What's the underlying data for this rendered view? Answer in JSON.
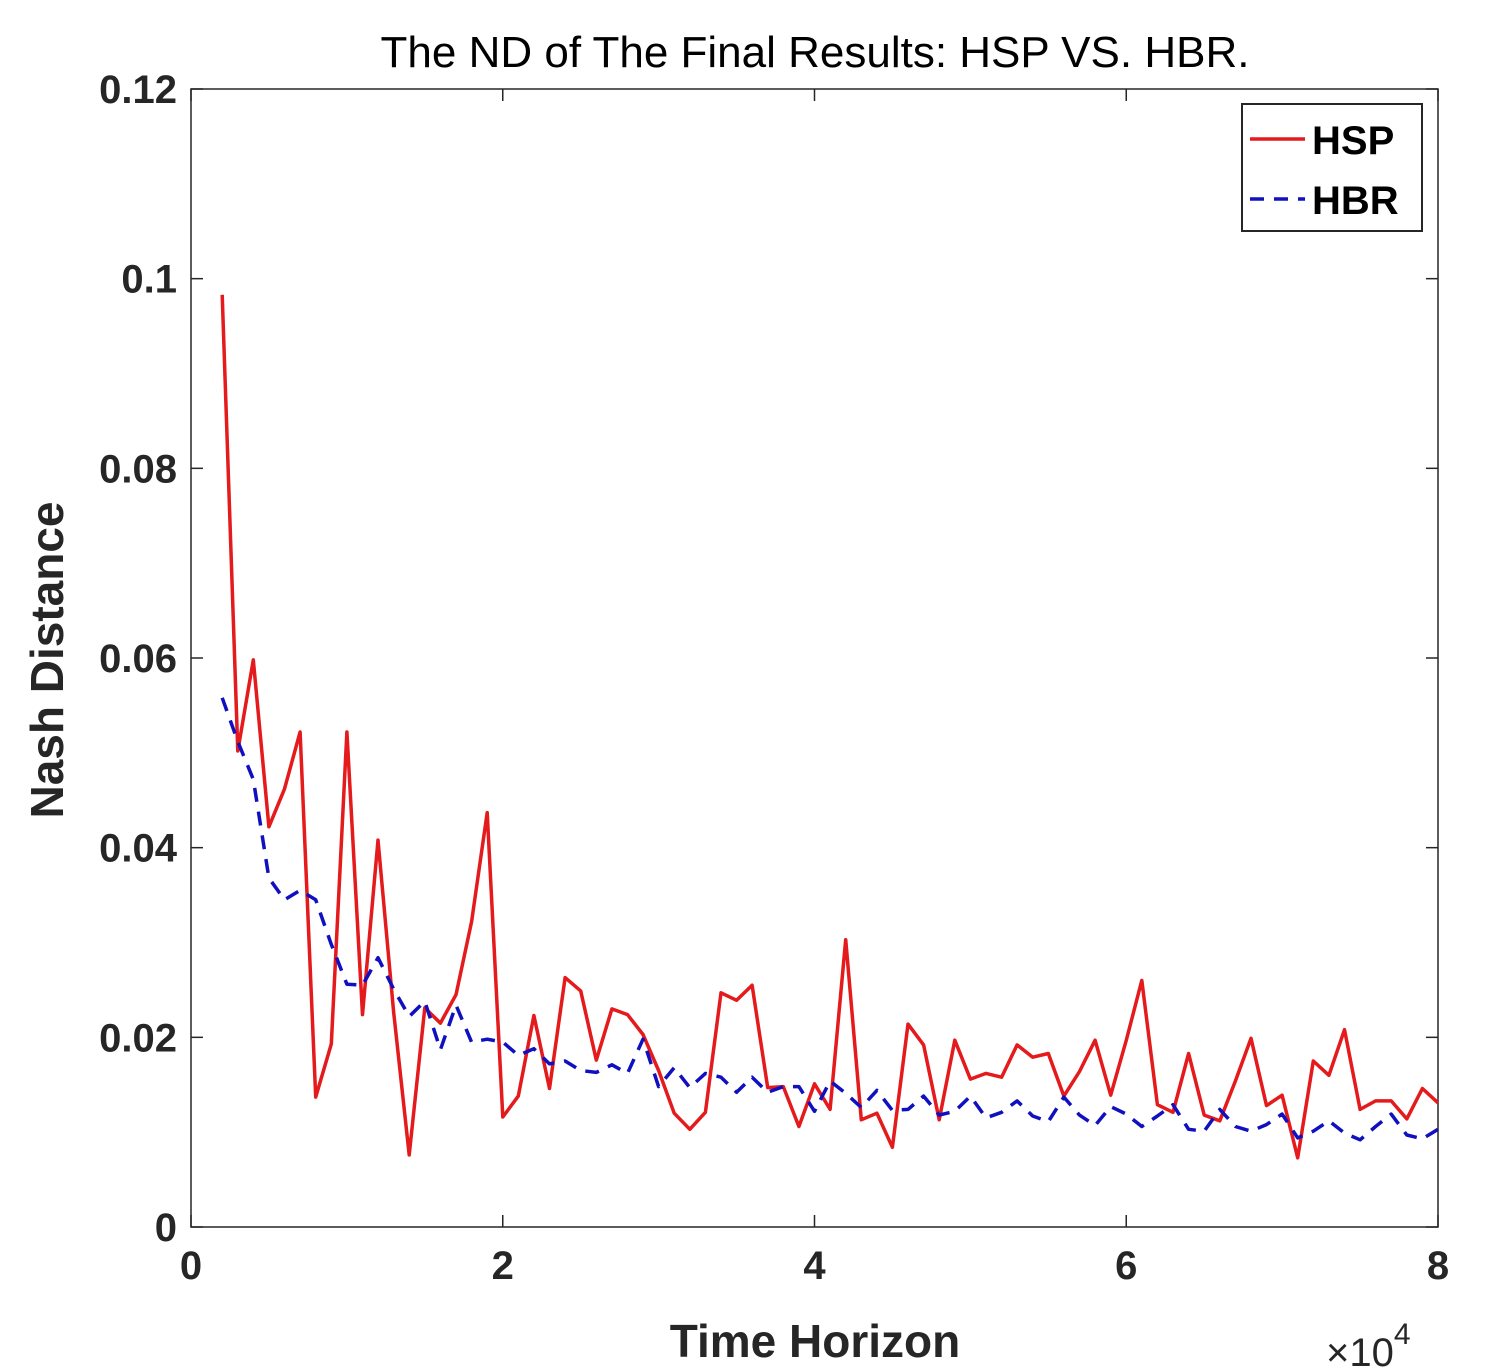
{
  "chart_data": {
    "type": "line",
    "title": "The ND of The Final Results: HSP VS. HBR.",
    "xlabel": "Time Horizon",
    "ylabel": "Nash Distance",
    "x_multiplier": "×10",
    "x_multiplier_exp": "4",
    "xlim": [
      0,
      8
    ],
    "ylim": [
      0,
      0.12
    ],
    "xticks": [
      "0",
      "2",
      "4",
      "6",
      "8"
    ],
    "yticks": [
      "0",
      "0.02",
      "0.04",
      "0.06",
      "0.08",
      "0.1",
      "0.12"
    ],
    "xtick_values": [
      0,
      2,
      4,
      6,
      8
    ],
    "ytick_values": [
      0,
      0.02,
      0.04,
      0.06,
      0.08,
      0.1,
      0.12
    ],
    "grid": false,
    "legend_position": "top-right",
    "series": [
      {
        "name": "HSP",
        "color": "#e41a1c",
        "style": "solid",
        "x": [
          0.2,
          0.3,
          0.4,
          0.5,
          0.6,
          0.7,
          0.8,
          0.9,
          1.0,
          1.1,
          1.2,
          1.3,
          1.4,
          1.5,
          1.6,
          1.7,
          1.8,
          1.9,
          2.0,
          2.1,
          2.2,
          2.3,
          2.4,
          2.5,
          2.6,
          2.7,
          2.8,
          2.9,
          3.0,
          3.1,
          3.2,
          3.3,
          3.4,
          3.5,
          3.6,
          3.7,
          3.8,
          3.9,
          4.0,
          4.1,
          4.2,
          4.3,
          4.4,
          4.5,
          4.6,
          4.7,
          4.8,
          4.9,
          5.0,
          5.1,
          5.2,
          5.3,
          5.4,
          5.5,
          5.6,
          5.7,
          5.8,
          5.9,
          6.0,
          6.1,
          6.2,
          6.3,
          6.4,
          6.5,
          6.6,
          6.7,
          6.8,
          6.9,
          7.0,
          7.1,
          7.2,
          7.3,
          7.4,
          7.5,
          7.6,
          7.7,
          7.8,
          7.9,
          8.0
        ],
        "values": [
          0.0983,
          0.0502,
          0.0598,
          0.0422,
          0.0462,
          0.0522,
          0.0137,
          0.0193,
          0.0522,
          0.0224,
          0.0408,
          0.0227,
          0.0076,
          0.0231,
          0.0215,
          0.0245,
          0.0322,
          0.0437,
          0.0116,
          0.0138,
          0.0223,
          0.0146,
          0.0263,
          0.0249,
          0.0176,
          0.023,
          0.0224,
          0.0203,
          0.0165,
          0.012,
          0.0103,
          0.0121,
          0.0247,
          0.0239,
          0.0255,
          0.0147,
          0.0148,
          0.0106,
          0.0151,
          0.0124,
          0.0303,
          0.0113,
          0.012,
          0.0084,
          0.0214,
          0.0192,
          0.0113,
          0.0197,
          0.0156,
          0.0162,
          0.0158,
          0.0192,
          0.0179,
          0.0183,
          0.0138,
          0.0164,
          0.0197,
          0.0139,
          0.0197,
          0.026,
          0.0129,
          0.0121,
          0.0183,
          0.0118,
          0.0112,
          0.0154,
          0.0199,
          0.0128,
          0.0139,
          0.0073,
          0.0175,
          0.016,
          0.0208,
          0.0124,
          0.0133,
          0.0133,
          0.0114,
          0.0146,
          0.0131
        ]
      },
      {
        "name": "HBR",
        "color": "#1010c0",
        "style": "dashed",
        "x": [
          0.2,
          0.3,
          0.4,
          0.5,
          0.6,
          0.7,
          0.8,
          0.9,
          1.0,
          1.1,
          1.2,
          1.3,
          1.4,
          1.5,
          1.6,
          1.7,
          1.8,
          1.9,
          2.0,
          2.1,
          2.2,
          2.3,
          2.4,
          2.5,
          2.6,
          2.7,
          2.8,
          2.9,
          3.0,
          3.1,
          3.2,
          3.3,
          3.4,
          3.5,
          3.6,
          3.7,
          3.8,
          3.9,
          4.0,
          4.1,
          4.2,
          4.3,
          4.4,
          4.5,
          4.6,
          4.7,
          4.8,
          4.9,
          5.0,
          5.1,
          5.2,
          5.3,
          5.4,
          5.5,
          5.6,
          5.7,
          5.8,
          5.9,
          6.0,
          6.1,
          6.2,
          6.3,
          6.4,
          6.5,
          6.6,
          6.7,
          6.8,
          6.9,
          7.0,
          7.1,
          7.2,
          7.3,
          7.4,
          7.5,
          7.6,
          7.7,
          7.8,
          7.9,
          8.0
        ],
        "values": [
          0.0558,
          0.0512,
          0.0472,
          0.0368,
          0.0345,
          0.0355,
          0.0345,
          0.0298,
          0.0256,
          0.0255,
          0.0284,
          0.0251,
          0.0222,
          0.0238,
          0.0187,
          0.0234,
          0.0195,
          0.0198,
          0.0195,
          0.0181,
          0.0188,
          0.0172,
          0.0175,
          0.0165,
          0.0163,
          0.0171,
          0.0162,
          0.0198,
          0.0148,
          0.0168,
          0.0147,
          0.0162,
          0.0158,
          0.0142,
          0.0158,
          0.0142,
          0.0148,
          0.0148,
          0.0122,
          0.0154,
          0.0141,
          0.0126,
          0.0144,
          0.0123,
          0.0124,
          0.0138,
          0.0118,
          0.0122,
          0.0138,
          0.0115,
          0.0121,
          0.0133,
          0.0117,
          0.0111,
          0.0137,
          0.0118,
          0.0107,
          0.0127,
          0.0119,
          0.0106,
          0.0117,
          0.0129,
          0.0103,
          0.0101,
          0.0124,
          0.0106,
          0.0101,
          0.0108,
          0.0119,
          0.0094,
          0.0101,
          0.0112,
          0.0099,
          0.0092,
          0.0106,
          0.0119,
          0.0097,
          0.0093,
          0.0103
        ]
      }
    ]
  }
}
